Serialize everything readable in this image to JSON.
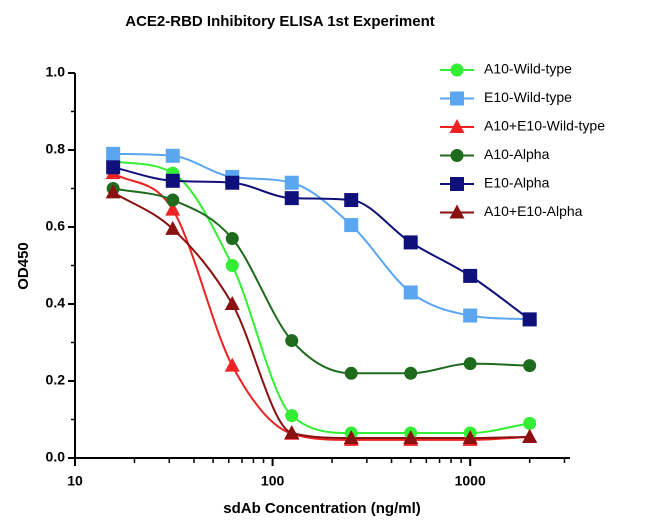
{
  "chart_data": {
    "type": "scatter",
    "title": "ACE2-RBD Inhibitory ELISA 1st Experiment",
    "xlabel": "sdAb Concentration (ng/ml)",
    "ylabel": "OD450",
    "x": [
      15.6,
      31.25,
      62.5,
      125,
      250,
      500,
      1000,
      2000
    ],
    "xscale": "log",
    "xlim": [
      10,
      3200
    ],
    "xticks": [
      10,
      100,
      1000
    ],
    "xticks_minor": [
      20,
      30,
      40,
      50,
      60,
      70,
      80,
      90,
      200,
      300,
      400,
      500,
      600,
      700,
      800,
      900,
      2000,
      3000
    ],
    "ylim": [
      0,
      1.0
    ],
    "yticks": [
      {
        "value": 0,
        "label": "0.0"
      },
      {
        "value": 0.2,
        "label": "0.2"
      },
      {
        "value": 0.4,
        "label": "0.4"
      },
      {
        "value": 0.6,
        "label": "0.6"
      },
      {
        "value": 0.8,
        "label": "0.8"
      },
      {
        "value": 1.0,
        "label": "1.0"
      }
    ],
    "yticks_minor": [
      0.1,
      0.3,
      0.5,
      0.7,
      0.9
    ],
    "legend": "upper right",
    "series": [
      {
        "name": "A10-Wild-type",
        "color": "#33ee33",
        "marker": "circle",
        "values": [
          0.77,
          0.74,
          0.5,
          0.11,
          0.065,
          0.065,
          0.065,
          0.09
        ]
      },
      {
        "name": "E10-Wild-type",
        "color": "#5aa6f0",
        "marker": "square",
        "values": [
          0.79,
          0.785,
          0.73,
          0.715,
          0.605,
          0.43,
          0.37,
          0.36
        ]
      },
      {
        "name": "A10+E10-Wild-type",
        "color": "#ee2222",
        "marker": "triangle",
        "values": [
          0.74,
          0.645,
          0.24,
          0.063,
          0.047,
          0.047,
          0.047,
          0.055
        ]
      },
      {
        "name": "A10-Alpha",
        "color": "#1e6b1e",
        "marker": "circle",
        "values": [
          0.7,
          0.67,
          0.57,
          0.305,
          0.22,
          0.22,
          0.245,
          0.24
        ]
      },
      {
        "name": "E10-Alpha",
        "color": "#10107a",
        "marker": "square",
        "values": [
          0.755,
          0.72,
          0.715,
          0.675,
          0.67,
          0.56,
          0.473,
          0.36
        ]
      },
      {
        "name": "A10+E10-Alpha",
        "color": "#8b1010",
        "marker": "triangle",
        "values": [
          0.69,
          0.595,
          0.4,
          0.065,
          0.052,
          0.052,
          0.052,
          0.055
        ]
      }
    ]
  }
}
